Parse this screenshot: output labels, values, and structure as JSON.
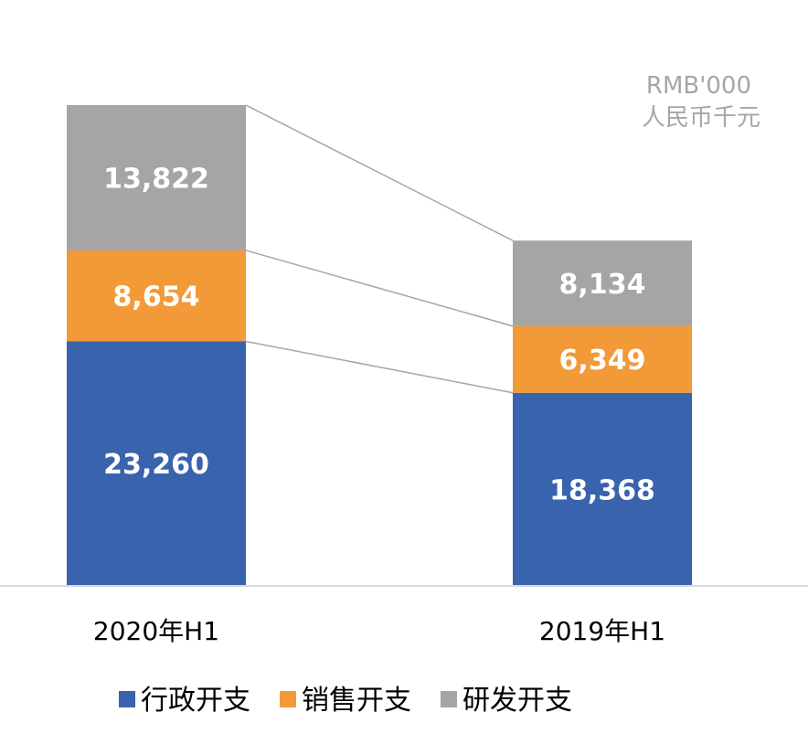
{
  "unit": {
    "line1": "RMB'000",
    "line2": "人民币千元"
  },
  "chart_data": {
    "type": "bar",
    "stacked": true,
    "categories": [
      "2020年H1",
      "2019年H1"
    ],
    "series": [
      {
        "name": "行政开支",
        "values": [
          23260,
          18368
        ],
        "labels": [
          "23,260",
          "18,368"
        ],
        "color": "#3a63ad"
      },
      {
        "name": "销售开支",
        "values": [
          8654,
          6349
        ],
        "labels": [
          "8,654",
          "6,349"
        ],
        "color": "#f29a38"
      },
      {
        "name": "研发开支",
        "values": [
          13822,
          8134
        ],
        "labels": [
          "13,822",
          "8,134"
        ],
        "color": "#a5a5a5"
      }
    ],
    "ylim": [
      0,
      46000
    ],
    "grid": false,
    "legend": "bottom",
    "connector_lines": true
  }
}
